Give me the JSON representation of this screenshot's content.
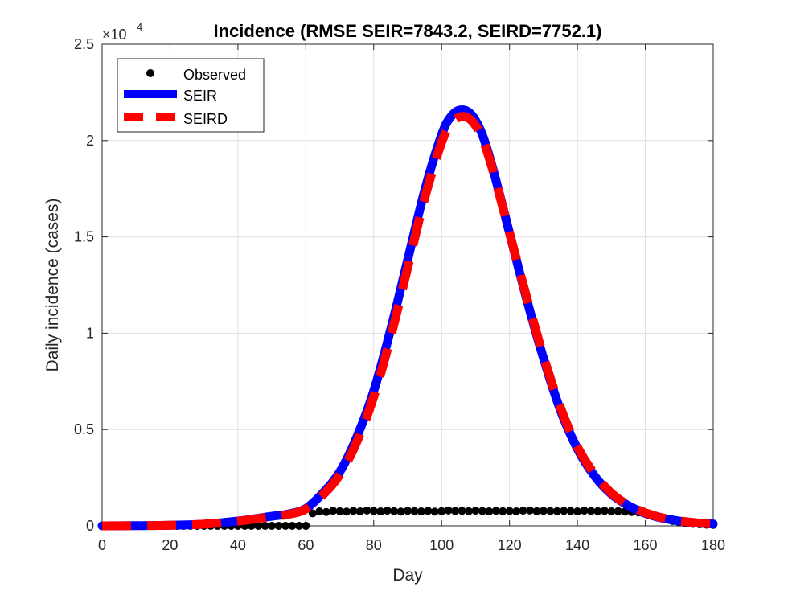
{
  "chart_data": {
    "type": "line",
    "title": "Incidence (RMSE SEIR=7843.2, SEIRD=7752.1)",
    "xlabel": "Day",
    "ylabel": "Daily incidence (cases)",
    "xlim": [
      0,
      180
    ],
    "ylim": [
      0,
      25000
    ],
    "x_ticks": [
      0,
      20,
      40,
      60,
      80,
      100,
      120,
      140,
      160,
      180
    ],
    "y_ticks": [
      0,
      5000,
      10000,
      15000,
      20000,
      25000
    ],
    "y_tick_labels": [
      "0",
      "0.5",
      "1",
      "1.5",
      "2",
      "2.5"
    ],
    "y_exponent_label": {
      "prefix": "×10",
      "power": "4"
    },
    "grid": true,
    "legend_position": "top-left",
    "series": [
      {
        "name": "Observed",
        "style": "markers",
        "color": "#000000",
        "x": [
          0,
          2,
          4,
          6,
          8,
          10,
          12,
          14,
          16,
          18,
          20,
          22,
          24,
          26,
          28,
          30,
          32,
          34,
          36,
          38,
          40,
          42,
          44,
          46,
          48,
          50,
          52,
          54,
          56,
          58,
          60,
          62,
          64,
          66,
          68,
          70,
          72,
          74,
          76,
          78,
          80,
          82,
          84,
          86,
          88,
          90,
          92,
          94,
          96,
          98,
          100,
          102,
          104,
          106,
          108,
          110,
          112,
          114,
          116,
          118,
          120,
          122,
          124,
          126,
          128,
          130,
          132,
          134,
          136,
          138,
          140,
          142,
          144,
          146,
          148,
          150,
          152,
          154,
          156,
          158,
          160,
          162,
          164,
          166,
          168,
          170,
          172,
          174,
          176,
          178,
          180
        ],
        "y": [
          0,
          0,
          0,
          0,
          0,
          0,
          0,
          0,
          0,
          0,
          0,
          0,
          0,
          0,
          0,
          0,
          0,
          0,
          0,
          0,
          0,
          0,
          0,
          0,
          0,
          0,
          0,
          0,
          0,
          0,
          0,
          650,
          750,
          720,
          780,
          760,
          740,
          780,
          750,
          800,
          770,
          750,
          790,
          760,
          740,
          780,
          760,
          750,
          780,
          740,
          760,
          800,
          770,
          780,
          760,
          790,
          770,
          750,
          780,
          760,
          770,
          750,
          790,
          800,
          760,
          780,
          770,
          760,
          780,
          770,
          750,
          790,
          770,
          760,
          780,
          750,
          760,
          740,
          720,
          700,
          650,
          550,
          450,
          350,
          250,
          180,
          120,
          100,
          80,
          60,
          50
        ]
      },
      {
        "name": "SEIR",
        "style": "solid",
        "color": "#0000FF",
        "peak_day": 106,
        "peak_value": 21600,
        "x": [
          0,
          10,
          20,
          30,
          40,
          50,
          55,
          60,
          65,
          70,
          75,
          80,
          85,
          90,
          95,
          100,
          103,
          106,
          109,
          112,
          115,
          120,
          125,
          130,
          135,
          140,
          145,
          150,
          155,
          160,
          165,
          170,
          175,
          180
        ],
        "y": [
          0,
          10,
          30,
          90,
          250,
          500,
          620,
          900,
          1700,
          2800,
          4600,
          7000,
          10200,
          13800,
          17400,
          20300,
          21300,
          21600,
          21300,
          20300,
          18600,
          15200,
          11800,
          8700,
          6000,
          4000,
          2600,
          1650,
          1050,
          650,
          400,
          250,
          150,
          100
        ]
      },
      {
        "name": "SEIRD",
        "style": "dashed",
        "color": "#FF0000",
        "peak_day": 106.5,
        "peak_value": 21300,
        "x": [
          0,
          10,
          20,
          30,
          40,
          50,
          55,
          60,
          65,
          70,
          75,
          80,
          85,
          90,
          95,
          100,
          103,
          106,
          109,
          112,
          115,
          120,
          125,
          130,
          135,
          140,
          145,
          150,
          155,
          160,
          165,
          170,
          175,
          180
        ],
        "y": [
          0,
          10,
          30,
          90,
          240,
          480,
          600,
          870,
          1600,
          2650,
          4350,
          6700,
          9800,
          13400,
          17000,
          19900,
          20900,
          21250,
          21000,
          20100,
          18500,
          15200,
          11900,
          8800,
          6150,
          4100,
          2700,
          1700,
          1080,
          680,
          420,
          260,
          160,
          100
        ]
      }
    ]
  }
}
